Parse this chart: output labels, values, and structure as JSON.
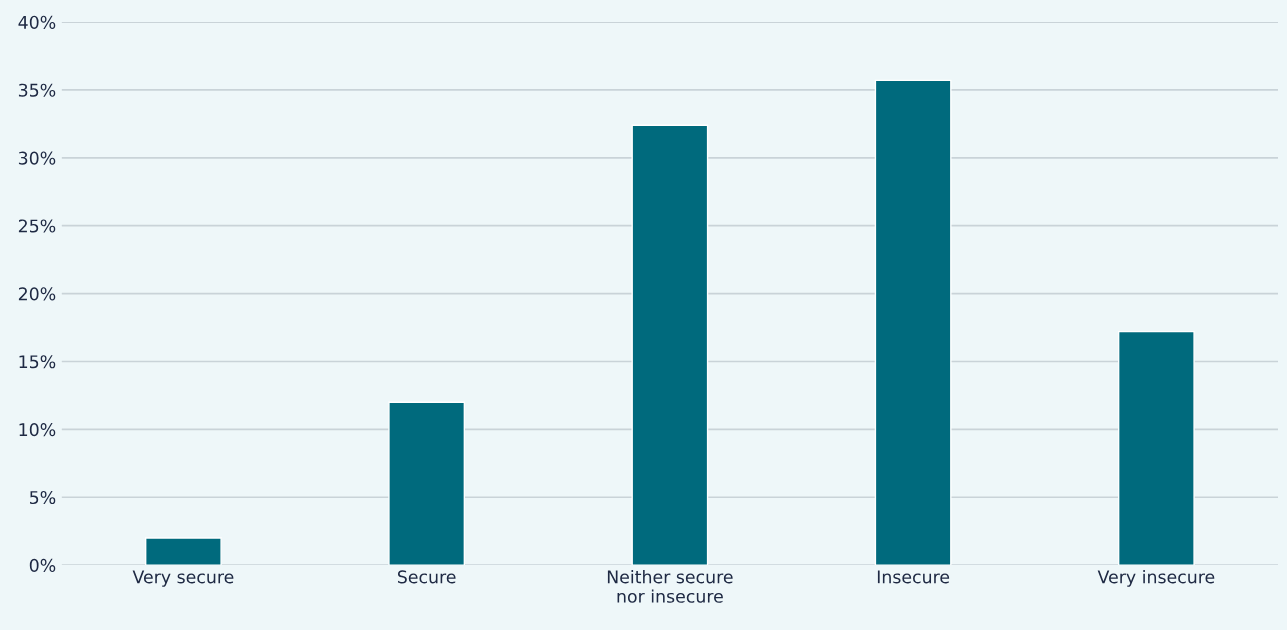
{
  "chart_data": {
    "type": "bar",
    "categories": [
      "Very secure",
      "Secure",
      "Neither secure\nnor insecure",
      "Insecure",
      "Very insecure"
    ],
    "values": [
      2.0,
      12.0,
      32.4,
      35.7,
      17.2
    ],
    "color": "#006a7d",
    "ylim": [
      0,
      40
    ],
    "yticks": [
      {
        "value": 0,
        "label": "0%"
      },
      {
        "value": 5,
        "label": "5%"
      },
      {
        "value": 10,
        "label": "10%"
      },
      {
        "value": 15,
        "label": "15%"
      },
      {
        "value": 20,
        "label": "20%"
      },
      {
        "value": 25,
        "label": "25%"
      },
      {
        "value": 30,
        "label": "30%"
      },
      {
        "value": 35,
        "label": "35%"
      },
      {
        "value": 40,
        "label": "40%"
      }
    ],
    "grid": "y"
  }
}
